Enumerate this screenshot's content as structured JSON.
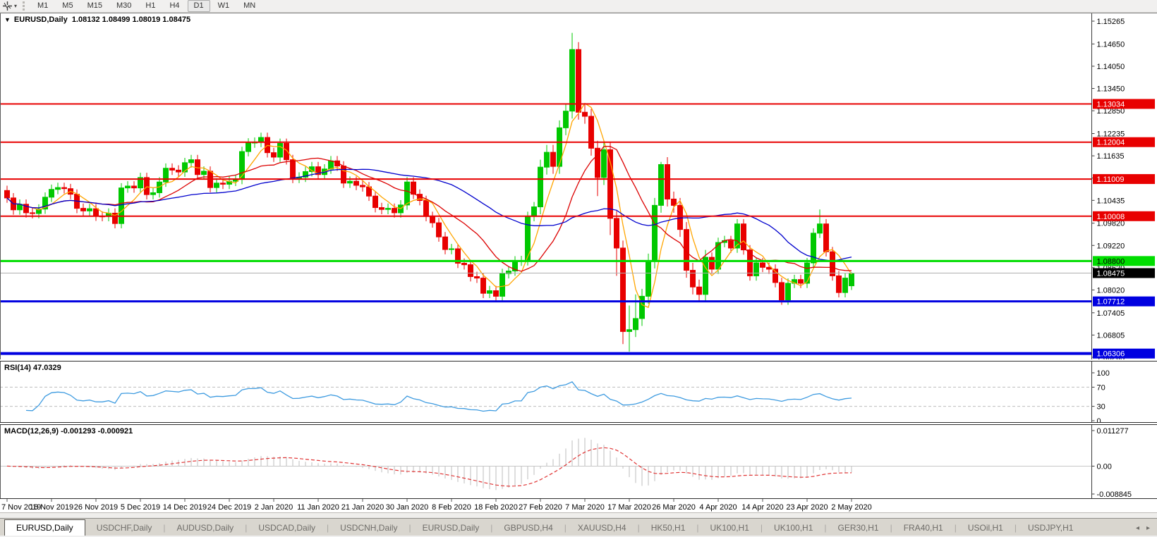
{
  "toolbar": {
    "tool_icon_name": "crosshair-tool-icon",
    "dropdown_icon": "▾",
    "timeframes": [
      "M1",
      "M5",
      "M15",
      "M30",
      "H1",
      "H4",
      "D1",
      "W1",
      "MN"
    ],
    "active_timeframe": "D1"
  },
  "chart": {
    "dropdown_icon": "▼",
    "title_symbol": "EURUSD,Daily",
    "title_ohlc": "1.08132 1.08499 1.08019 1.08475"
  },
  "chart_data": {
    "type": "candlestick",
    "symbol": "EURUSD",
    "timeframe": "Daily",
    "ohlc_display": {
      "open": "1.08132",
      "high": "1.08499",
      "low": "1.08019",
      "close": "1.08475"
    },
    "up_color": "#00C800",
    "down_color": "#E80000",
    "price_axis_ticks": [
      "1.15265",
      "1.14650",
      "1.14050",
      "1.13450",
      "1.12850",
      "1.12235",
      "1.11635",
      "1.11035",
      "1.10435",
      "1.09820",
      "1.09220",
      "1.08620",
      "1.08020",
      "1.07405",
      "1.06805",
      "1.06205"
    ],
    "x_tick_labels": [
      "7 Nov 2019",
      "16 Nov 2019",
      "26 Nov 2019",
      "5 Dec 2019",
      "14 Dec 2019",
      "24 Dec 2019",
      "2 Jan 2020",
      "11 Jan 2020",
      "21 Jan 2020",
      "30 Jan 2020",
      "8 Feb 2020",
      "18 Feb 2020",
      "27 Feb 2020",
      "7 Mar 2020",
      "17 Mar 2020",
      "26 Mar 2020",
      "4 Apr 2020",
      "14 Apr 2020",
      "23 Apr 2020",
      "2 May 2020"
    ],
    "x_tick_every": 7,
    "hlines": [
      {
        "price": 1.13034,
        "label": "1.13034",
        "color": "#E80000",
        "width": 2,
        "label_text_color": "#FFFFFF"
      },
      {
        "price": 1.12004,
        "label": "1.12004",
        "color": "#E80000",
        "width": 2,
        "label_text_color": "#FFFFFF"
      },
      {
        "price": 1.11009,
        "label": "1.11009",
        "color": "#E80000",
        "width": 2,
        "label_text_color": "#FFFFFF"
      },
      {
        "price": 1.10008,
        "label": "1.10008",
        "color": "#E80000",
        "width": 2,
        "label_text_color": "#FFFFFF"
      },
      {
        "price": 1.088,
        "label": "1.08800",
        "color": "#00DD00",
        "width": 3,
        "label_text_color": "#000000"
      },
      {
        "price": 1.07712,
        "label": "1.07712",
        "color": "#0000E0",
        "width": 3,
        "label_text_color": "#FFFFFF"
      },
      {
        "price": 1.06306,
        "label": "1.06306",
        "color": "#0000E0",
        "width": 4,
        "label_text_color": "#FFFFFF"
      }
    ],
    "current_price": {
      "value": 1.08475,
      "label": "1.08475",
      "line_color": "#ADADAD",
      "label_bg": "#000000",
      "label_text_color": "#FFFFFF"
    },
    "moving_averages": [
      {
        "name": "fast-ma",
        "period": 5,
        "color": "#FFA500"
      },
      {
        "name": "medium-ma",
        "period": 13,
        "color": "#DC0000"
      },
      {
        "name": "slow-ma",
        "period": 34,
        "color": "#0000CD"
      }
    ],
    "candles": [
      [
        1.107,
        1.1083,
        1.1037,
        1.105
      ],
      [
        1.105,
        1.1063,
        1.1005,
        1.1018
      ],
      [
        1.1018,
        1.1046,
        1.1005,
        1.1033
      ],
      [
        1.1033,
        1.1046,
        1.0997,
        1.101
      ],
      [
        1.101,
        1.1023,
        1.0995,
        1.1008
      ],
      [
        1.1008,
        1.1033,
        1.0995,
        1.102
      ],
      [
        1.102,
        1.1065,
        1.1007,
        1.1052
      ],
      [
        1.1052,
        1.1086,
        1.1039,
        1.1073
      ],
      [
        1.1073,
        1.1091,
        1.106,
        1.1078
      ],
      [
        1.1078,
        1.1091,
        1.1062,
        1.1075
      ],
      [
        1.1075,
        1.1088,
        1.1047,
        1.106
      ],
      [
        1.106,
        1.1073,
        1.1009,
        1.1022
      ],
      [
        1.1022,
        1.1035,
        1.1002,
        1.1015
      ],
      [
        1.1015,
        1.1034,
        1.1002,
        1.1021
      ],
      [
        1.1021,
        1.1034,
        1.0988,
        1.1001
      ],
      [
        1.1001,
        1.1014,
        1.0987,
        1.1
      ],
      [
        1.1,
        1.1022,
        1.0987,
        1.1009
      ],
      [
        1.1009,
        1.1022,
        1.0968,
        1.0981
      ],
      [
        1.0981,
        1.109,
        1.0968,
        1.1077
      ],
      [
        1.1077,
        1.1095,
        1.1064,
        1.1082
      ],
      [
        1.1082,
        1.1095,
        1.1064,
        1.1077
      ],
      [
        1.1077,
        1.1118,
        1.1064,
        1.1105
      ],
      [
        1.1105,
        1.1118,
        1.1046,
        1.1059
      ],
      [
        1.1059,
        1.1077,
        1.1046,
        1.1064
      ],
      [
        1.1064,
        1.1106,
        1.1051,
        1.1093
      ],
      [
        1.1093,
        1.1143,
        1.108,
        1.113
      ],
      [
        1.113,
        1.1143,
        1.1112,
        1.1125
      ],
      [
        1.1125,
        1.1138,
        1.1107,
        1.112
      ],
      [
        1.112,
        1.1158,
        1.1107,
        1.1145
      ],
      [
        1.1145,
        1.1166,
        1.1132,
        1.1153
      ],
      [
        1.1153,
        1.1166,
        1.11,
        1.1113
      ],
      [
        1.1113,
        1.1135,
        1.11,
        1.1122
      ],
      [
        1.1122,
        1.1135,
        1.1065,
        1.1078
      ],
      [
        1.1078,
        1.1103,
        1.1065,
        1.109
      ],
      [
        1.109,
        1.1103,
        1.1074,
        1.1087
      ],
      [
        1.1087,
        1.1108,
        1.1074,
        1.1095
      ],
      [
        1.1095,
        1.1113,
        1.1082,
        1.11
      ],
      [
        1.11,
        1.1188,
        1.1087,
        1.1175
      ],
      [
        1.1175,
        1.1211,
        1.1162,
        1.1198
      ],
      [
        1.1198,
        1.1213,
        1.1185,
        1.12
      ],
      [
        1.12,
        1.1226,
        1.1187,
        1.1213
      ],
      [
        1.1213,
        1.1226,
        1.1159,
        1.1172
      ],
      [
        1.1172,
        1.1185,
        1.1147,
        1.116
      ],
      [
        1.116,
        1.121,
        1.1147,
        1.1197
      ],
      [
        1.1197,
        1.121,
        1.114,
        1.1153
      ],
      [
        1.1153,
        1.1166,
        1.109,
        1.1103
      ],
      [
        1.1103,
        1.1119,
        1.109,
        1.1106
      ],
      [
        1.1106,
        1.1134,
        1.1093,
        1.1121
      ],
      [
        1.1121,
        1.1147,
        1.1108,
        1.1134
      ],
      [
        1.1134,
        1.1147,
        1.11,
        1.1113
      ],
      [
        1.1113,
        1.1141,
        1.11,
        1.1128
      ],
      [
        1.1128,
        1.1163,
        1.1115,
        1.115
      ],
      [
        1.115,
        1.1163,
        1.1123,
        1.1136
      ],
      [
        1.1136,
        1.1149,
        1.1077,
        1.109
      ],
      [
        1.109,
        1.1108,
        1.1077,
        1.1095
      ],
      [
        1.1095,
        1.1108,
        1.1071,
        1.1084
      ],
      [
        1.1084,
        1.1097,
        1.1067,
        1.108
      ],
      [
        1.108,
        1.1093,
        1.1042,
        1.1055
      ],
      [
        1.1055,
        1.1068,
        1.1011,
        1.1024
      ],
      [
        1.1024,
        1.1037,
        1.1006,
        1.1019
      ],
      [
        1.1019,
        1.1035,
        1.1006,
        1.1022
      ],
      [
        1.1022,
        1.1035,
        1.0997,
        1.101
      ],
      [
        1.101,
        1.1044,
        1.0997,
        1.1031
      ],
      [
        1.1031,
        1.1106,
        1.1018,
        1.1093
      ],
      [
        1.1093,
        1.1106,
        1.1047,
        1.106
      ],
      [
        1.106,
        1.1073,
        1.103,
        1.1043
      ],
      [
        1.1043,
        1.1056,
        1.0987,
        1.1
      ],
      [
        1.1,
        1.1013,
        1.097,
        1.0983
      ],
      [
        1.0983,
        1.0996,
        1.0932,
        1.0945
      ],
      [
        1.0945,
        1.0958,
        1.0898,
        1.0911
      ],
      [
        1.0911,
        1.0926,
        1.0898,
        1.0913
      ],
      [
        1.0913,
        1.0926,
        1.0861,
        1.0874
      ],
      [
        1.0874,
        1.0887,
        1.0857,
        1.087
      ],
      [
        1.087,
        1.0883,
        1.0825,
        1.0838
      ],
      [
        1.0838,
        1.0851,
        1.0821,
        1.0834
      ],
      [
        1.0834,
        1.0847,
        1.078,
        1.0793
      ],
      [
        1.0793,
        1.0813,
        1.078,
        1.08
      ],
      [
        1.08,
        1.0813,
        1.0772,
        1.0785
      ],
      [
        1.0785,
        1.0859,
        1.0772,
        1.0846
      ],
      [
        1.0846,
        1.0866,
        1.0833,
        1.0853
      ],
      [
        1.0853,
        1.0893,
        1.084,
        1.088
      ],
      [
        1.088,
        1.0894,
        1.0867,
        1.0881
      ],
      [
        1.0881,
        1.1013,
        1.0868,
        1.1
      ],
      [
        1.1,
        1.1039,
        1.0987,
        1.1026
      ],
      [
        1.1026,
        1.1153,
        1.1006,
        1.1133
      ],
      [
        1.1133,
        1.1193,
        1.1113,
        1.1173
      ],
      [
        1.1173,
        1.1193,
        1.1115,
        1.1135
      ],
      [
        1.1135,
        1.1259,
        1.1115,
        1.1239
      ],
      [
        1.1239,
        1.1304,
        1.1219,
        1.1284
      ],
      [
        1.1284,
        1.1495,
        1.1264,
        1.145
      ],
      [
        1.145,
        1.147,
        1.1261,
        1.1281
      ],
      [
        1.1281,
        1.1301,
        1.125,
        1.127
      ],
      [
        1.127,
        1.129,
        1.1164,
        1.1184
      ],
      [
        1.1184,
        1.1204,
        1.1055,
        1.1105
      ],
      [
        1.1105,
        1.12,
        1.1085,
        1.118
      ],
      [
        1.118,
        1.12,
        1.095,
        1.0995
      ],
      [
        1.0995,
        1.1015,
        1.084,
        1.0915
      ],
      [
        1.0915,
        1.0935,
        1.0656,
        1.069
      ],
      [
        1.069,
        1.076,
        1.0636,
        1.0695
      ],
      [
        1.0695,
        1.079,
        1.0675,
        1.0725
      ],
      [
        1.0725,
        1.0805,
        1.0705,
        1.0785
      ],
      [
        1.0785,
        1.09,
        1.0765,
        1.088
      ],
      [
        1.088,
        1.105,
        1.086,
        1.103
      ],
      [
        1.103,
        1.1147,
        1.101,
        1.114
      ],
      [
        1.114,
        1.116,
        1.1027,
        1.1047
      ],
      [
        1.1047,
        1.1067,
        1.101,
        1.103
      ],
      [
        1.103,
        1.105,
        1.0945,
        1.0965
      ],
      [
        1.0965,
        1.0985,
        1.0835,
        1.0855
      ],
      [
        1.0855,
        1.0875,
        1.079,
        1.081
      ],
      [
        1.081,
        1.083,
        1.077,
        1.079
      ],
      [
        1.079,
        1.091,
        1.077,
        1.089
      ],
      [
        1.089,
        1.0903,
        1.0845,
        1.0858
      ],
      [
        1.0858,
        1.0943,
        1.0845,
        1.093
      ],
      [
        1.093,
        1.0948,
        1.0917,
        1.0935
      ],
      [
        1.0935,
        1.0948,
        1.0902,
        1.0915
      ],
      [
        1.0915,
        1.0993,
        1.0902,
        1.098
      ],
      [
        1.098,
        1.0993,
        1.0897,
        1.091
      ],
      [
        1.091,
        1.0923,
        1.0827,
        1.084
      ],
      [
        1.084,
        1.0888,
        1.0827,
        1.0875
      ],
      [
        1.0875,
        1.0888,
        1.085,
        1.0863
      ],
      [
        1.0863,
        1.0876,
        1.0845,
        1.0858
      ],
      [
        1.0858,
        1.0871,
        1.0809,
        1.0822
      ],
      [
        1.0822,
        1.0835,
        1.0762,
        1.0775
      ],
      [
        1.0775,
        1.0833,
        1.0762,
        1.082
      ],
      [
        1.082,
        1.0843,
        1.0807,
        1.083
      ],
      [
        1.083,
        1.0843,
        1.0807,
        1.082
      ],
      [
        1.082,
        1.0888,
        1.0807,
        1.0875
      ],
      [
        1.0875,
        1.0968,
        1.0862,
        1.0955
      ],
      [
        1.0955,
        1.1019,
        1.0942,
        1.098
      ],
      [
        1.098,
        1.0993,
        1.0892,
        1.0905
      ],
      [
        1.0905,
        1.0918,
        1.0827,
        1.084
      ],
      [
        1.084,
        1.0853,
        1.0782,
        1.0795
      ],
      [
        1.0795,
        1.0847,
        1.0782,
        1.0834
      ],
      [
        1.08132,
        1.08499,
        1.08019,
        1.08475
      ]
    ],
    "rsi": {
      "label": "RSI(14) 47.0329",
      "period": 14,
      "current": 47.0329,
      "color": "#3E9BE0",
      "levels": [
        70,
        30
      ],
      "axis_labels": [
        {
          "label": "100",
          "value": 100
        },
        {
          "label": "70",
          "value": 70
        },
        {
          "label": "30",
          "value": 30
        },
        {
          "label": "0",
          "value": 0
        }
      ]
    },
    "macd": {
      "label": "MACD(12,26,9) -0.001293 -0.000921",
      "fast": 12,
      "slow": 26,
      "signal": 9,
      "current_macd": -0.001293,
      "current_signal": -0.000921,
      "histogram_color": "#C8C8C8",
      "signal_color": "#E03535",
      "axis_labels": [
        {
          "label": "0.011277",
          "value": 0.011277
        },
        {
          "label": "0.00",
          "value": 0
        },
        {
          "label": "-0.008845",
          "value": -0.008845
        }
      ],
      "range": [
        -0.008845,
        0.011277
      ]
    }
  },
  "tabs": {
    "active_index": 0,
    "items": [
      "EURUSD,Daily",
      "USDCHF,Daily",
      "AUDUSD,Daily",
      "USDCAD,Daily",
      "USDCNH,Daily",
      "EURUSD,Daily",
      "GBPUSD,H4",
      "XAUUSD,H4",
      "HK50,H1",
      "UK100,H1",
      "UK100,H1",
      "GER30,H1",
      "FRA40,H1",
      "USOil,H1",
      "USDJPY,H1"
    ],
    "scroll_left_icon": "◂",
    "scroll_right_icon": "▸"
  }
}
